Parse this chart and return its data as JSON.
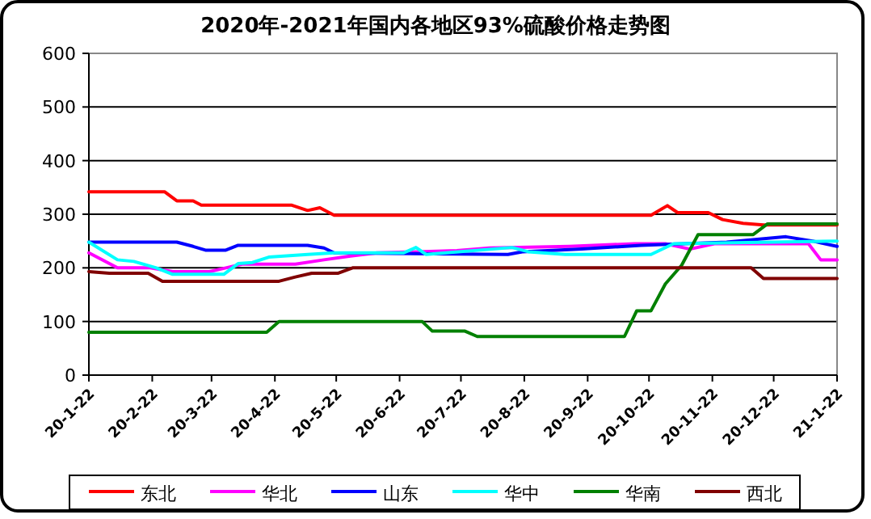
{
  "chart_data": {
    "type": "line",
    "title": "2020年-2021年国内各地区93%硫酸价格走势图",
    "xlim": [
      "2020-01-22",
      "2021-01-22"
    ],
    "xticks": [
      {
        "value": "2020-01-22",
        "label": "20-1-22"
      },
      {
        "value": "2020-02-22",
        "label": "20-2-22"
      },
      {
        "value": "2020-03-22",
        "label": "20-3-22"
      },
      {
        "value": "2020-04-22",
        "label": "20-4-22"
      },
      {
        "value": "2020-05-22",
        "label": "20-5-22"
      },
      {
        "value": "2020-06-22",
        "label": "20-6-22"
      },
      {
        "value": "2020-07-22",
        "label": "20-7-22"
      },
      {
        "value": "2020-08-22",
        "label": "20-8-22"
      },
      {
        "value": "2020-09-22",
        "label": "20-9-22"
      },
      {
        "value": "2020-10-22",
        "label": "20-10-22"
      },
      {
        "value": "2020-11-22",
        "label": "20-11-22"
      },
      {
        "value": "2020-12-22",
        "label": "20-12-22"
      },
      {
        "value": "2021-01-22",
        "label": "21-1-22"
      }
    ],
    "ylim": [
      0,
      600
    ],
    "yticks": [
      0,
      100,
      200,
      300,
      400,
      500,
      600
    ],
    "grid": "y",
    "legend": "bottom",
    "marker": "none",
    "line_style": "solid",
    "series": [
      {
        "name": "东北",
        "color": "#ff0000",
        "x": [
          "2020-01-22",
          "2020-02-28",
          "2020-03-05",
          "2020-03-13",
          "2020-03-17",
          "2020-04-30",
          "2020-05-08",
          "2020-05-14",
          "2020-05-21",
          "2020-10-23",
          "2020-10-31",
          "2020-11-05",
          "2020-11-20",
          "2020-11-27",
          "2020-12-07",
          "2020-12-17",
          "2021-01-22"
        ],
        "values": [
          342,
          342,
          325,
          325,
          317,
          317,
          307,
          312,
          298,
          298,
          316,
          303,
          303,
          290,
          283,
          280,
          280
        ]
      },
      {
        "name": "华北",
        "color": "#ff00ff",
        "x": [
          "2020-01-22",
          "2020-02-05",
          "2020-02-21",
          "2020-03-03",
          "2020-03-21",
          "2020-03-29",
          "2020-04-06",
          "2020-05-02",
          "2020-05-16",
          "2020-05-29",
          "2020-06-11",
          "2020-07-20",
          "2020-08-05",
          "2020-09-13",
          "2020-10-15",
          "2020-10-30",
          "2020-11-11",
          "2020-11-23",
          "2021-01-08",
          "2021-01-14",
          "2021-01-22"
        ],
        "values": [
          228,
          200,
          200,
          193,
          193,
          200,
          207,
          207,
          215,
          222,
          228,
          232,
          237,
          240,
          245,
          245,
          235,
          245,
          245,
          215,
          215
        ]
      },
      {
        "name": "山东",
        "color": "#0000ff",
        "x": [
          "2020-01-22",
          "2020-03-05",
          "2020-03-13",
          "2020-03-19",
          "2020-03-29",
          "2020-04-04",
          "2020-05-08",
          "2020-05-16",
          "2020-05-21",
          "2020-08-14",
          "2020-08-21",
          "2020-09-19",
          "2020-10-18",
          "2020-11-29",
          "2020-12-28",
          "2021-01-10",
          "2021-01-22"
        ],
        "values": [
          248,
          248,
          240,
          233,
          233,
          242,
          242,
          237,
          228,
          225,
          230,
          235,
          242,
          248,
          258,
          250,
          240
        ]
      },
      {
        "name": "华中",
        "color": "#00ffff",
        "x": [
          "2020-01-22",
          "2020-02-05",
          "2020-02-13",
          "2020-02-24",
          "2020-03-03",
          "2020-03-28",
          "2020-04-04",
          "2020-04-11",
          "2020-04-19",
          "2020-05-08",
          "2020-05-21",
          "2020-06-24",
          "2020-06-30",
          "2020-07-05",
          "2020-08-16",
          "2020-08-24",
          "2020-09-11",
          "2020-10-23",
          "2020-11-03",
          "2021-01-22"
        ],
        "values": [
          248,
          215,
          212,
          200,
          188,
          188,
          208,
          210,
          220,
          225,
          228,
          228,
          238,
          225,
          238,
          230,
          225,
          225,
          245,
          250
        ]
      },
      {
        "name": "华南",
        "color": "#008000",
        "x": [
          "2020-01-22",
          "2020-04-18",
          "2020-04-24",
          "2020-07-03",
          "2020-07-08",
          "2020-07-24",
          "2020-07-30",
          "2020-10-10",
          "2020-10-16",
          "2020-10-23",
          "2020-10-30",
          "2020-11-07",
          "2020-11-15",
          "2020-12-12",
          "2020-12-19",
          "2021-01-22"
        ],
        "values": [
          80,
          80,
          100,
          100,
          82,
          82,
          72,
          72,
          120,
          120,
          170,
          205,
          262,
          262,
          282,
          282
        ]
      },
      {
        "name": "西北",
        "color": "#800000",
        "x": [
          "2020-01-22",
          "2020-02-01",
          "2020-02-20",
          "2020-02-27",
          "2020-04-24",
          "2020-05-02",
          "2020-05-10",
          "2020-05-23",
          "2020-05-30",
          "2020-12-11",
          "2020-12-17",
          "2021-01-22"
        ],
        "values": [
          193,
          190,
          190,
          175,
          175,
          183,
          190,
          190,
          200,
          200,
          180,
          180
        ]
      }
    ]
  }
}
